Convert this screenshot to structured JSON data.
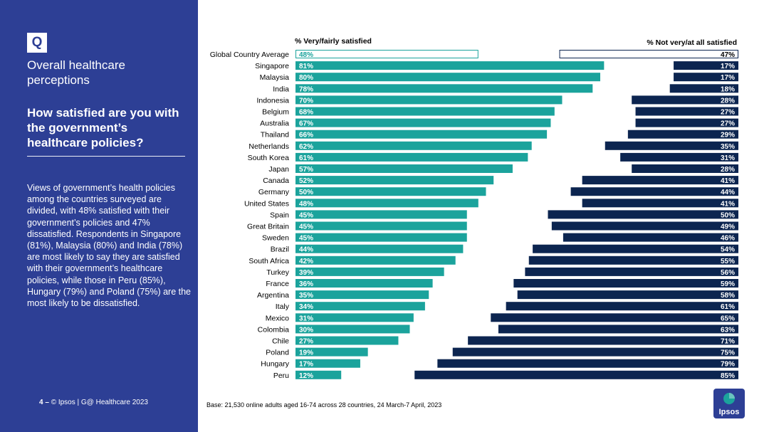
{
  "sidebar": {
    "badge": "Q",
    "title": "Overall healthcare perceptions",
    "question": "How satisfied are you with the government’s healthcare policies?",
    "body": "Views of government’s health policies among the countries surveyed are divided, with 48% satisfied with their government’s policies and 47% dissatisfied. Respondents in Singapore (81%), Malaysia (80%) and India (78%) are most likely to say they are satisfied with their government’s healthcare policies, while those in Peru (85%), Hungary (79%) and Poland (75%) are the most likely to be dissatisfied.",
    "page_number": "4",
    "page_sep": "–",
    "footer": "© Ipsos | G@ Healthcare 2023"
  },
  "base_note": "Base: 21,530 online adults aged 16-74 across 28 countries, 24 March-7 April, 2023",
  "logo_text": "Ipsos",
  "colors": {
    "sidebar": "#2d3f95",
    "satisfied": "#1ba39c",
    "dissatisfied": "#0c2550",
    "highlight_outline": "#1ba39c",
    "highlight_outline_right": "#0c2550"
  },
  "chart_data": {
    "type": "bar",
    "orientation": "horizontal-diverging",
    "left_header": "% Very/fairly satisfied",
    "right_header": "% Not very/at all satisfied",
    "value_suffix": "%",
    "xlim": [
      0,
      100
    ],
    "categories": [
      "Global Country Average",
      "Singapore",
      "Malaysia",
      "India",
      "Indonesia",
      "Belgium",
      "Australia",
      "Thailand",
      "Netherlands",
      "South Korea",
      "Japan",
      "Canada",
      "Germany",
      "United States",
      "Spain",
      "Great Britain",
      "Sweden",
      "Brazil",
      "South Africa",
      "Turkey",
      "France",
      "Argentina",
      "Italy",
      "Mexico",
      "Colombia",
      "Chile",
      "Poland",
      "Hungary",
      "Peru"
    ],
    "series": [
      {
        "name": "% Very/fairly satisfied",
        "values": [
          48,
          81,
          80,
          78,
          70,
          68,
          67,
          66,
          62,
          61,
          57,
          52,
          50,
          48,
          45,
          45,
          45,
          44,
          42,
          39,
          36,
          35,
          34,
          31,
          30,
          27,
          19,
          17,
          12
        ]
      },
      {
        "name": "% Not very/at all satisfied",
        "values": [
          47,
          17,
          17,
          18,
          28,
          27,
          27,
          29,
          35,
          31,
          28,
          41,
          44,
          41,
          50,
          49,
          46,
          54,
          55,
          56,
          59,
          58,
          61,
          65,
          63,
          71,
          75,
          79,
          85
        ]
      }
    ],
    "highlight_category": "Global Country Average"
  }
}
